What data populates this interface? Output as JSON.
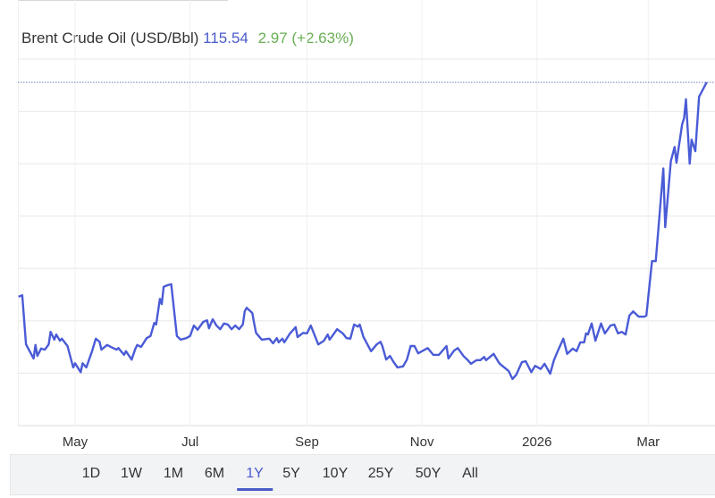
{
  "header": {
    "name": "Brent Crude Oil (USD/Bbl)",
    "price": "115.54",
    "change": "2.97 (+2.63%)"
  },
  "colors": {
    "line": "#4a5bd6",
    "price": "#4a5bc9",
    "change": "#6aaf55",
    "grid": "#e8e8e8",
    "reference_line": "#6b7fb8"
  },
  "range_buttons": [
    {
      "label": "1D"
    },
    {
      "label": "1W"
    },
    {
      "label": "1M"
    },
    {
      "label": "6M"
    },
    {
      "label": "1Y",
      "selected": true
    },
    {
      "label": "5Y"
    },
    {
      "label": "10Y"
    },
    {
      "label": "25Y"
    },
    {
      "label": "50Y"
    },
    {
      "label": "All"
    }
  ],
  "chart_data": {
    "type": "line",
    "title": "Brent Crude Oil (USD/Bbl)",
    "xlabel": "",
    "ylabel": "",
    "x_tick_labels": [
      {
        "date": "2025-05-01",
        "label": "May"
      },
      {
        "date": "2025-07-01",
        "label": "Jul"
      },
      {
        "date": "2025-09-01",
        "label": "Sep"
      },
      {
        "date": "2025-11-01",
        "label": "Nov"
      },
      {
        "date": "2026-01-01",
        "label": "2026"
      },
      {
        "date": "2026-03-01",
        "label": "Mar"
      }
    ],
    "xlim": [
      "2025-04-01",
      "2026-04-04"
    ],
    "ylim": [
      50,
      120
    ],
    "y_gridlines": [
      50,
      60,
      70,
      80,
      90,
      100,
      110,
      120
    ],
    "y_tick_labels_visible": false,
    "grid": true,
    "reference_line": 115.54,
    "series": [
      {
        "x": [
          "2025-04-01",
          "2025-04-03",
          "2025-04-05",
          "2025-04-09",
          "2025-04-10",
          "2025-04-11",
          "2025-04-13",
          "2025-04-15",
          "2025-04-17",
          "2025-04-18",
          "2025-04-20",
          "2025-04-21",
          "2025-04-23",
          "2025-04-24",
          "2025-04-27",
          "2025-04-30",
          "2025-05-01",
          "2025-05-04",
          "2025-05-05",
          "2025-05-07",
          "2025-05-10",
          "2025-05-12",
          "2025-05-14",
          "2025-05-15",
          "2025-05-18",
          "2025-05-20",
          "2025-05-23",
          "2025-05-24",
          "2025-05-27",
          "2025-05-28",
          "2025-05-31",
          "2025-06-02",
          "2025-06-03",
          "2025-06-05",
          "2025-06-08",
          "2025-06-10",
          "2025-06-12",
          "2025-06-13",
          "2025-06-15",
          "2025-06-16",
          "2025-06-17",
          "2025-06-19",
          "2025-06-21",
          "2025-06-24",
          "2025-06-26",
          "2025-06-29",
          "2025-07-01",
          "2025-07-03",
          "2025-07-05",
          "2025-07-08",
          "2025-07-10",
          "2025-07-11",
          "2025-07-13",
          "2025-07-15",
          "2025-07-17",
          "2025-07-19",
          "2025-07-21",
          "2025-07-23",
          "2025-07-25",
          "2025-07-27",
          "2025-07-29",
          "2025-07-30",
          "2025-07-31",
          "2025-08-03",
          "2025-08-04",
          "2025-08-05",
          "2025-08-08",
          "2025-08-12",
          "2025-08-14",
          "2025-08-16",
          "2025-08-17",
          "2025-08-19",
          "2025-08-20",
          "2025-08-23",
          "2025-08-26",
          "2025-08-27",
          "2025-08-30",
          "2025-09-01",
          "2025-09-03",
          "2025-09-07",
          "2025-09-10",
          "2025-09-12",
          "2025-09-13",
          "2025-09-17",
          "2025-09-20",
          "2025-09-22",
          "2025-09-24",
          "2025-09-26",
          "2025-09-28",
          "2025-09-29",
          "2025-10-01",
          "2025-10-05",
          "2025-10-08",
          "2025-10-10",
          "2025-10-11",
          "2025-10-13",
          "2025-10-15",
          "2025-10-17",
          "2025-10-19",
          "2025-10-22",
          "2025-10-24",
          "2025-10-26",
          "2025-10-28",
          "2025-10-30",
          "2025-11-04",
          "2025-11-07",
          "2025-11-10",
          "2025-11-14",
          "2025-11-15",
          "2025-11-18",
          "2025-11-20",
          "2025-11-23",
          "2025-11-25",
          "2025-11-27",
          "2025-11-30",
          "2025-12-02",
          "2025-12-04",
          "2025-12-05",
          "2025-12-09",
          "2025-12-12",
          "2025-12-14",
          "2025-12-17",
          "2025-12-19",
          "2025-12-21",
          "2025-12-24",
          "2025-12-26",
          "2025-12-29",
          "2025-12-31",
          "2026-01-03",
          "2026-01-05",
          "2026-01-08",
          "2026-01-10",
          "2026-01-12",
          "2026-01-15",
          "2026-01-17",
          "2026-01-20",
          "2026-01-22",
          "2026-01-24",
          "2026-01-26",
          "2026-01-27",
          "2026-01-28",
          "2026-01-30",
          "2026-02-01",
          "2026-02-04",
          "2026-02-06",
          "2026-02-09",
          "2026-02-11",
          "2026-02-13",
          "2026-02-15",
          "2026-02-17",
          "2026-02-19",
          "2026-02-21",
          "2026-02-24",
          "2026-02-27",
          "2026-02-28",
          "2026-03-03",
          "2026-03-05",
          "2026-03-09",
          "2026-03-10",
          "2026-03-13",
          "2026-03-15",
          "2026-03-16",
          "2026-03-19",
          "2026-03-20",
          "2026-03-21",
          "2026-03-23",
          "2026-03-24",
          "2026-03-26",
          "2026-03-28",
          "2026-04-01"
        ],
        "values": [
          74.6,
          74.9,
          65.5,
          62.8,
          65.4,
          63.3,
          64.7,
          64.5,
          65.5,
          67.9,
          66.4,
          67.4,
          66.2,
          66.6,
          65.2,
          61.1,
          61.9,
          60.2,
          61.9,
          61.1,
          64.2,
          66.6,
          66.0,
          64.5,
          65.4,
          65.0,
          64.5,
          64.8,
          63.5,
          64.2,
          62.6,
          64.7,
          65.4,
          65.0,
          66.7,
          67.1,
          69.6,
          69.3,
          74.2,
          73.2,
          76.5,
          76.8,
          77.0,
          67.1,
          66.4,
          66.7,
          67.1,
          69.1,
          68.3,
          69.8,
          70.1,
          68.6,
          70.3,
          69.1,
          68.4,
          69.5,
          69.3,
          68.4,
          69.1,
          68.4,
          69.3,
          71.8,
          72.5,
          71.5,
          69.5,
          67.7,
          66.4,
          66.6,
          65.7,
          66.7,
          65.9,
          66.6,
          65.9,
          67.6,
          68.8,
          66.9,
          67.7,
          67.6,
          69.1,
          65.5,
          66.2,
          67.4,
          66.4,
          68.4,
          67.6,
          66.7,
          66.6,
          69.3,
          68.9,
          69.3,
          66.9,
          64.2,
          65.5,
          66.0,
          65.2,
          62.6,
          63.3,
          62.1,
          61.1,
          61.3,
          62.6,
          65.2,
          65.2,
          63.8,
          64.8,
          63.5,
          63.5,
          65.2,
          62.8,
          64.3,
          64.8,
          63.3,
          62.6,
          61.8,
          62.5,
          62.5,
          63.1,
          62.5,
          63.7,
          61.9,
          61.3,
          60.4,
          58.9,
          59.7,
          62.1,
          62.3,
          60.2,
          61.4,
          60.8,
          61.8,
          59.9,
          62.5,
          64.2,
          66.6,
          63.7,
          64.7,
          64.2,
          65.9,
          65.9,
          67.6,
          67.4,
          69.5,
          66.2,
          69.5,
          67.6,
          69.1,
          69.3,
          67.6,
          67.9,
          67.4,
          71.0,
          71.8,
          70.8,
          70.8,
          71.0,
          81.4,
          81.4,
          99.1,
          87.9,
          100.5,
          103.2,
          100.2,
          107.5,
          108.7,
          112.3,
          100.0,
          104.6,
          102.4,
          112.8,
          115.54
        ]
      }
    ]
  }
}
